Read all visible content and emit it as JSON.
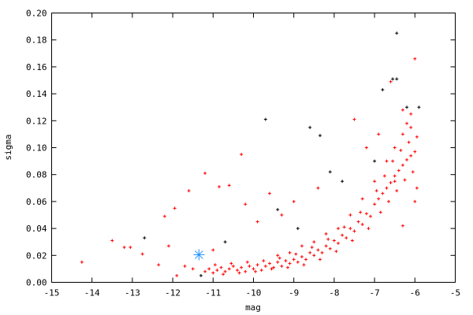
{
  "chart_data": {
    "type": "scatter",
    "title": "",
    "xlabel": "mag",
    "ylabel": "sigma",
    "xlim": [
      -15,
      -5
    ],
    "ylim": [
      0,
      0.2
    ],
    "xticks": [
      -15,
      -14,
      -13,
      -12,
      -11,
      -10,
      -9,
      -8,
      -7,
      -6,
      -5
    ],
    "xtick_labels": [
      "-15",
      "-14",
      "-13",
      "-12",
      "-11",
      "-10",
      "-9",
      "-8",
      "-7",
      "-6",
      "-5"
    ],
    "yticks": [
      0,
      0.02,
      0.04,
      0.06,
      0.08,
      0.1,
      0.12,
      0.14,
      0.16,
      0.18,
      0.2
    ],
    "ytick_labels": [
      "0.00",
      "0.02",
      "0.04",
      "0.06",
      "0.08",
      "0.10",
      "0.12",
      "0.14",
      "0.16",
      "0.18",
      "0.20"
    ],
    "grid": false,
    "series": [
      {
        "color": "#ff0000",
        "marker": "plus",
        "points": [
          [
            -11.2,
            0.008
          ],
          [
            -11.1,
            0.01
          ],
          [
            -11.0,
            0.007
          ],
          [
            -10.9,
            0.009
          ],
          [
            -10.8,
            0.011
          ],
          [
            -10.7,
            0.008
          ],
          [
            -10.6,
            0.01
          ],
          [
            -10.5,
            0.012
          ],
          [
            -10.4,
            0.009
          ],
          [
            -10.3,
            0.011
          ],
          [
            -10.2,
            0.008
          ],
          [
            -10.1,
            0.012
          ],
          [
            -10.0,
            0.01
          ],
          [
            -9.9,
            0.013
          ],
          [
            -9.8,
            0.009
          ],
          [
            -9.7,
            0.012
          ],
          [
            -9.6,
            0.014
          ],
          [
            -9.5,
            0.011
          ],
          [
            -9.4,
            0.015
          ],
          [
            -9.3,
            0.012
          ],
          [
            -9.2,
            0.016
          ],
          [
            -9.1,
            0.014
          ],
          [
            -9.0,
            0.017
          ],
          [
            -8.9,
            0.015
          ],
          [
            -8.8,
            0.019
          ],
          [
            -8.7,
            0.017
          ],
          [
            -8.6,
            0.022
          ],
          [
            -8.5,
            0.02
          ],
          [
            -8.4,
            0.024
          ],
          [
            -8.3,
            0.022
          ],
          [
            -8.2,
            0.027
          ],
          [
            -8.1,
            0.025
          ],
          [
            -8.0,
            0.031
          ],
          [
            -7.9,
            0.029
          ],
          [
            -7.8,
            0.035
          ],
          [
            -7.7,
            0.033
          ],
          [
            -7.6,
            0.04
          ],
          [
            -7.5,
            0.038
          ],
          [
            -7.4,
            0.045
          ],
          [
            -7.3,
            0.043
          ],
          [
            -7.2,
            0.051
          ],
          [
            -7.1,
            0.049
          ],
          [
            -7.0,
            0.058
          ],
          [
            -6.9,
            0.062
          ],
          [
            -6.8,
            0.066
          ],
          [
            -6.7,
            0.07
          ],
          [
            -6.6,
            0.074
          ],
          [
            -6.5,
            0.079
          ],
          [
            -6.4,
            0.083
          ],
          [
            -6.3,
            0.087
          ],
          [
            -6.2,
            0.091
          ],
          [
            -6.1,
            0.094
          ],
          [
            -6.0,
            0.097
          ],
          [
            -10.95,
            0.013
          ],
          [
            -10.75,
            0.006
          ],
          [
            -10.55,
            0.014
          ],
          [
            -10.35,
            0.007
          ],
          [
            -10.15,
            0.015
          ],
          [
            -9.95,
            0.008
          ],
          [
            -9.75,
            0.016
          ],
          [
            -9.55,
            0.01
          ],
          [
            -9.35,
            0.018
          ],
          [
            -9.15,
            0.011
          ],
          [
            -8.95,
            0.021
          ],
          [
            -8.75,
            0.013
          ],
          [
            -8.55,
            0.026
          ],
          [
            -8.35,
            0.017
          ],
          [
            -8.15,
            0.032
          ],
          [
            -7.95,
            0.023
          ],
          [
            -7.75,
            0.041
          ],
          [
            -7.55,
            0.031
          ],
          [
            -7.35,
            0.052
          ],
          [
            -7.15,
            0.04
          ],
          [
            -6.95,
            0.068
          ],
          [
            -6.85,
            0.052
          ],
          [
            -6.75,
            0.079
          ],
          [
            -6.65,
            0.06
          ],
          [
            -6.55,
            0.09
          ],
          [
            -6.45,
            0.068
          ],
          [
            -6.35,
            0.098
          ],
          [
            -6.25,
            0.076
          ],
          [
            -6.15,
            0.104
          ],
          [
            -6.05,
            0.082
          ],
          [
            -5.95,
            0.108
          ],
          [
            -6.3,
            0.11
          ],
          [
            -6.2,
            0.118
          ],
          [
            -6.1,
            0.125
          ],
          [
            -5.95,
            0.07
          ],
          [
            -6.0,
            0.06
          ],
          [
            -6.1,
            0.115
          ],
          [
            -6.5,
            0.1
          ],
          [
            -6.7,
            0.09
          ],
          [
            -7.0,
            0.075
          ],
          [
            -7.3,
            0.062
          ],
          [
            -7.6,
            0.05
          ],
          [
            -7.9,
            0.04
          ],
          [
            -8.2,
            0.036
          ],
          [
            -8.5,
            0.03
          ],
          [
            -8.8,
            0.027
          ],
          [
            -9.1,
            0.022
          ],
          [
            -9.4,
            0.02
          ],
          [
            -14.25,
            0.015
          ],
          [
            -13.5,
            0.031
          ],
          [
            -13.2,
            0.026
          ],
          [
            -13.05,
            0.026
          ],
          [
            -12.75,
            0.021
          ],
          [
            -12.35,
            0.013
          ],
          [
            -12.2,
            0.049
          ],
          [
            -12.1,
            0.027
          ],
          [
            -11.95,
            0.055
          ],
          [
            -11.9,
            0.005
          ],
          [
            -11.7,
            0.012
          ],
          [
            -11.6,
            0.068
          ],
          [
            -11.5,
            0.01
          ],
          [
            -11.2,
            0.081
          ],
          [
            -11.0,
            0.024
          ],
          [
            -10.85,
            0.071
          ],
          [
            -10.6,
            0.072
          ],
          [
            -10.3,
            0.095
          ],
          [
            -10.2,
            0.058
          ],
          [
            -9.9,
            0.045
          ],
          [
            -9.6,
            0.066
          ],
          [
            -9.3,
            0.05
          ],
          [
            -9.0,
            0.06
          ],
          [
            -8.4,
            0.07
          ],
          [
            -7.5,
            0.121
          ],
          [
            -7.2,
            0.1
          ],
          [
            -6.9,
            0.11
          ],
          [
            -6.6,
            0.149
          ],
          [
            -6.0,
            0.166
          ],
          [
            -6.3,
            0.128
          ],
          [
            -6.5,
            0.075
          ],
          [
            -6.3,
            0.042
          ]
        ]
      },
      {
        "color": "#000000",
        "marker": "plus",
        "points": [
          [
            -12.7,
            0.033
          ],
          [
            -11.3,
            0.005
          ],
          [
            -10.7,
            0.03
          ],
          [
            -9.7,
            0.121
          ],
          [
            -9.4,
            0.054
          ],
          [
            -8.6,
            0.115
          ],
          [
            -8.35,
            0.109
          ],
          [
            -8.1,
            0.082
          ],
          [
            -7.8,
            0.075
          ],
          [
            -6.8,
            0.143
          ],
          [
            -6.55,
            0.151
          ],
          [
            -6.45,
            0.151
          ],
          [
            -6.45,
            0.185
          ],
          [
            -6.2,
            0.13
          ],
          [
            -5.9,
            0.13
          ],
          [
            -7.0,
            0.09
          ],
          [
            -8.9,
            0.04
          ]
        ]
      },
      {
        "color": "#1e90ff",
        "marker": "star",
        "points": [
          [
            -11.35,
            0.0205
          ]
        ]
      }
    ]
  }
}
